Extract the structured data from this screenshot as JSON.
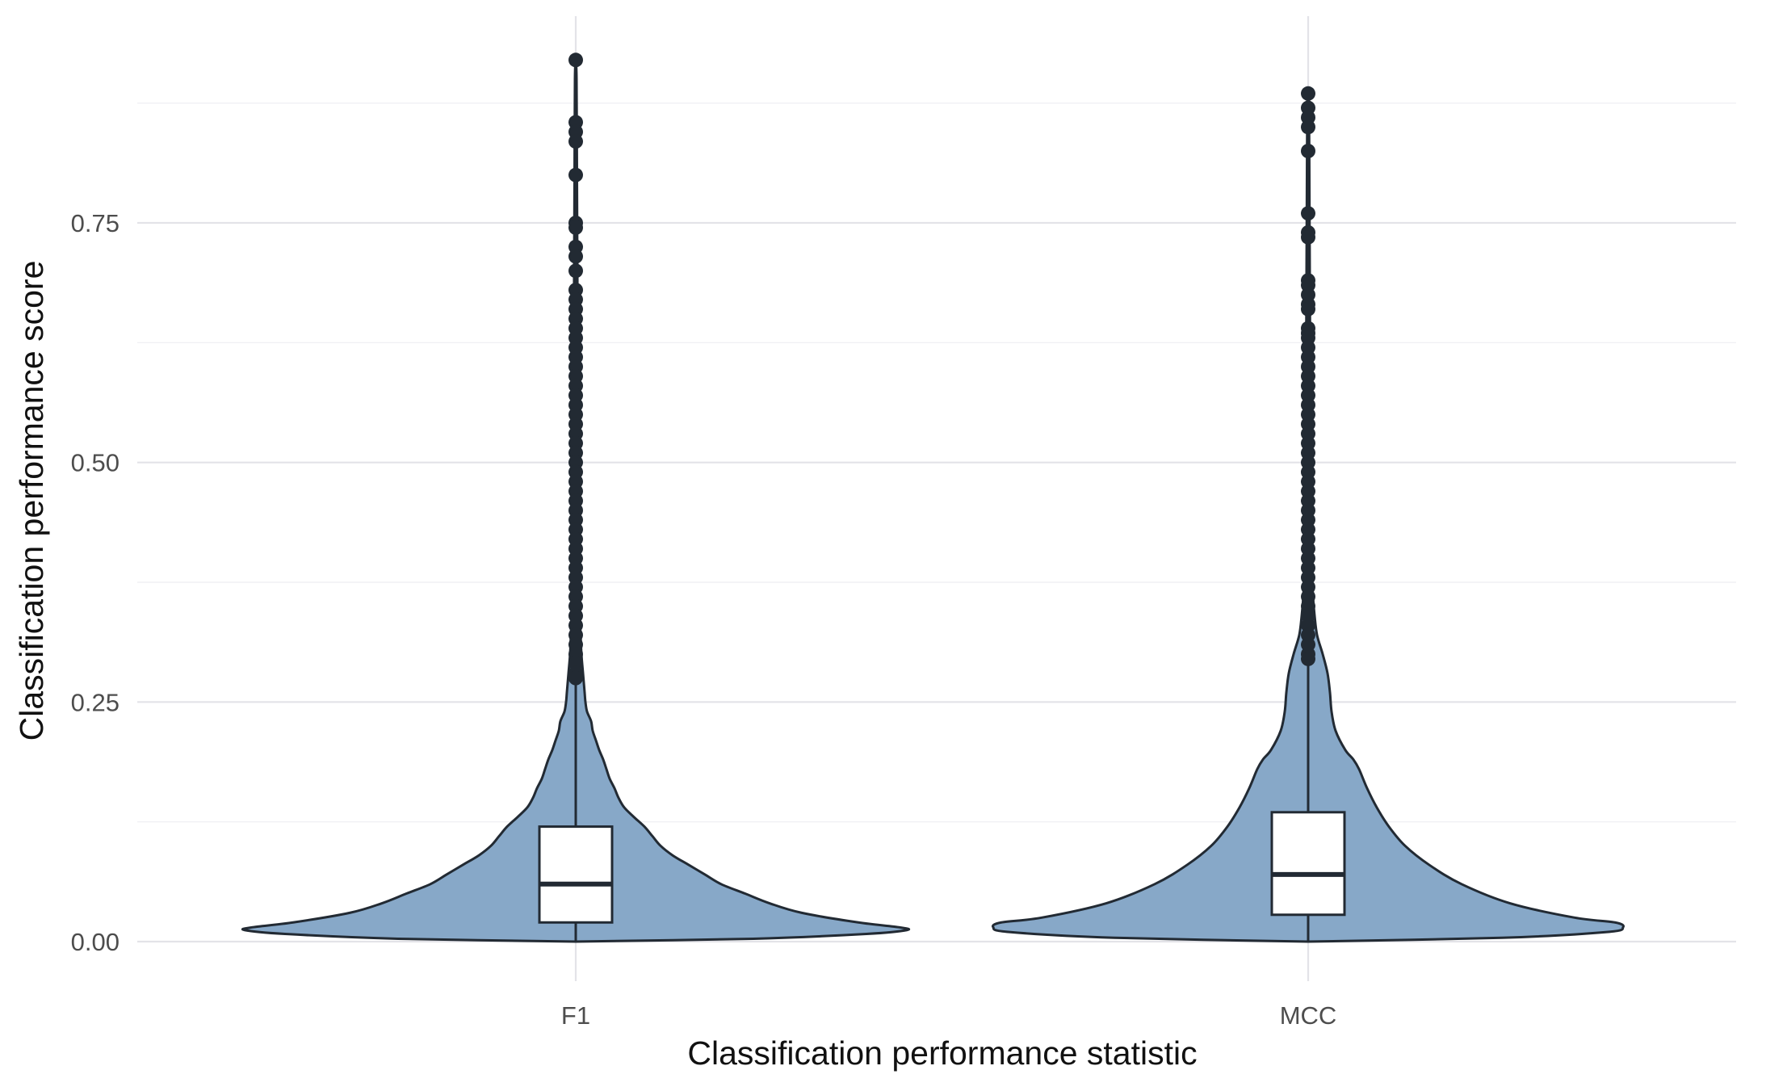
{
  "chart_data": {
    "type": "violin",
    "title": "",
    "xlabel": "Classification performance statistic",
    "ylabel": "Classification performance score",
    "categories": [
      "F1",
      "MCC"
    ],
    "ylim": [
      -0.03,
      0.94
    ],
    "yticks": [
      0.0,
      0.25,
      0.5,
      0.75
    ],
    "ytick_labels": [
      "0.00",
      "0.25",
      "0.50",
      "0.75"
    ],
    "grid": true,
    "colors": {
      "violin_fill": "#87a8c8",
      "outline": "#222a33",
      "box_fill": "#ffffff",
      "grid_major": "#e3e3e8",
      "grid_minor": "#f0f0f4"
    },
    "series": [
      {
        "name": "F1",
        "box": {
          "q1": 0.02,
          "median": 0.06,
          "q3": 0.12,
          "whisker_low": 0.0,
          "whisker_high": 0.27
        },
        "outliers": [
          0.92,
          0.855,
          0.845,
          0.835,
          0.8,
          0.75,
          0.745,
          0.725,
          0.715,
          0.7,
          0.68,
          0.67,
          0.66,
          0.65,
          0.64,
          0.63,
          0.62,
          0.61,
          0.6,
          0.59,
          0.58,
          0.57,
          0.56,
          0.55,
          0.54,
          0.53,
          0.52,
          0.51,
          0.5,
          0.49,
          0.48,
          0.47,
          0.46,
          0.45,
          0.44,
          0.43,
          0.42,
          0.41,
          0.4,
          0.39,
          0.38,
          0.37,
          0.36,
          0.35,
          0.34,
          0.33,
          0.32,
          0.31,
          0.3,
          0.29,
          0.28,
          0.275
        ],
        "density_half_width": [
          [
            0.0,
            0.0
          ],
          [
            0.003,
            0.22
          ],
          [
            0.008,
            0.36
          ],
          [
            0.012,
            0.41
          ],
          [
            0.015,
            0.4
          ],
          [
            0.02,
            0.35
          ],
          [
            0.03,
            0.28
          ],
          [
            0.04,
            0.24
          ],
          [
            0.05,
            0.21
          ],
          [
            0.06,
            0.18
          ],
          [
            0.07,
            0.16
          ],
          [
            0.08,
            0.14
          ],
          [
            0.09,
            0.12
          ],
          [
            0.1,
            0.105
          ],
          [
            0.11,
            0.095
          ],
          [
            0.12,
            0.085
          ],
          [
            0.13,
            0.072
          ],
          [
            0.14,
            0.06
          ],
          [
            0.15,
            0.053
          ],
          [
            0.16,
            0.048
          ],
          [
            0.17,
            0.042
          ],
          [
            0.18,
            0.038
          ],
          [
            0.19,
            0.034
          ],
          [
            0.2,
            0.029
          ],
          [
            0.21,
            0.025
          ],
          [
            0.22,
            0.021
          ],
          [
            0.23,
            0.019
          ],
          [
            0.24,
            0.014
          ],
          [
            0.25,
            0.012
          ],
          [
            0.26,
            0.011
          ],
          [
            0.27,
            0.01
          ],
          [
            0.28,
            0.009
          ],
          [
            0.3,
            0.007
          ],
          [
            0.32,
            0.006
          ],
          [
            0.34,
            0.005
          ],
          [
            0.36,
            0.0045
          ],
          [
            0.4,
            0.004
          ],
          [
            0.45,
            0.0035
          ],
          [
            0.5,
            0.003
          ],
          [
            0.6,
            0.0025
          ],
          [
            0.7,
            0.002
          ],
          [
            0.8,
            0.0015
          ],
          [
            0.9,
            0.001
          ],
          [
            0.92,
            0.0
          ]
        ]
      },
      {
        "name": "MCC",
        "box": {
          "q1": 0.028,
          "median": 0.07,
          "q3": 0.135,
          "whisker_low": 0.0,
          "whisker_high": 0.29
        },
        "outliers": [
          0.885,
          0.87,
          0.86,
          0.85,
          0.825,
          0.76,
          0.74,
          0.735,
          0.69,
          0.685,
          0.675,
          0.665,
          0.66,
          0.64,
          0.635,
          0.63,
          0.62,
          0.61,
          0.6,
          0.59,
          0.58,
          0.57,
          0.56,
          0.55,
          0.54,
          0.53,
          0.52,
          0.51,
          0.5,
          0.49,
          0.48,
          0.47,
          0.46,
          0.45,
          0.44,
          0.43,
          0.42,
          0.41,
          0.4,
          0.39,
          0.38,
          0.37,
          0.36,
          0.35,
          0.34,
          0.33,
          0.32,
          0.31,
          0.3,
          0.295
        ],
        "density_half_width": [
          [
            0.0,
            0.0
          ],
          [
            0.004,
            0.24
          ],
          [
            0.01,
            0.37
          ],
          [
            0.015,
            0.39
          ],
          [
            0.02,
            0.38
          ],
          [
            0.025,
            0.33
          ],
          [
            0.04,
            0.25
          ],
          [
            0.06,
            0.19
          ],
          [
            0.08,
            0.15
          ],
          [
            0.1,
            0.12
          ],
          [
            0.12,
            0.1
          ],
          [
            0.14,
            0.085
          ],
          [
            0.16,
            0.073
          ],
          [
            0.18,
            0.063
          ],
          [
            0.19,
            0.056
          ],
          [
            0.2,
            0.046
          ],
          [
            0.22,
            0.034
          ],
          [
            0.24,
            0.029
          ],
          [
            0.26,
            0.027
          ],
          [
            0.28,
            0.024
          ],
          [
            0.3,
            0.018
          ],
          [
            0.32,
            0.011
          ],
          [
            0.34,
            0.008
          ],
          [
            0.36,
            0.006
          ],
          [
            0.38,
            0.005
          ],
          [
            0.42,
            0.004
          ],
          [
            0.5,
            0.003
          ],
          [
            0.6,
            0.0025
          ],
          [
            0.7,
            0.002
          ],
          [
            0.8,
            0.0015
          ],
          [
            0.88,
            0.001
          ],
          [
            0.89,
            0.0
          ]
        ]
      }
    ]
  }
}
